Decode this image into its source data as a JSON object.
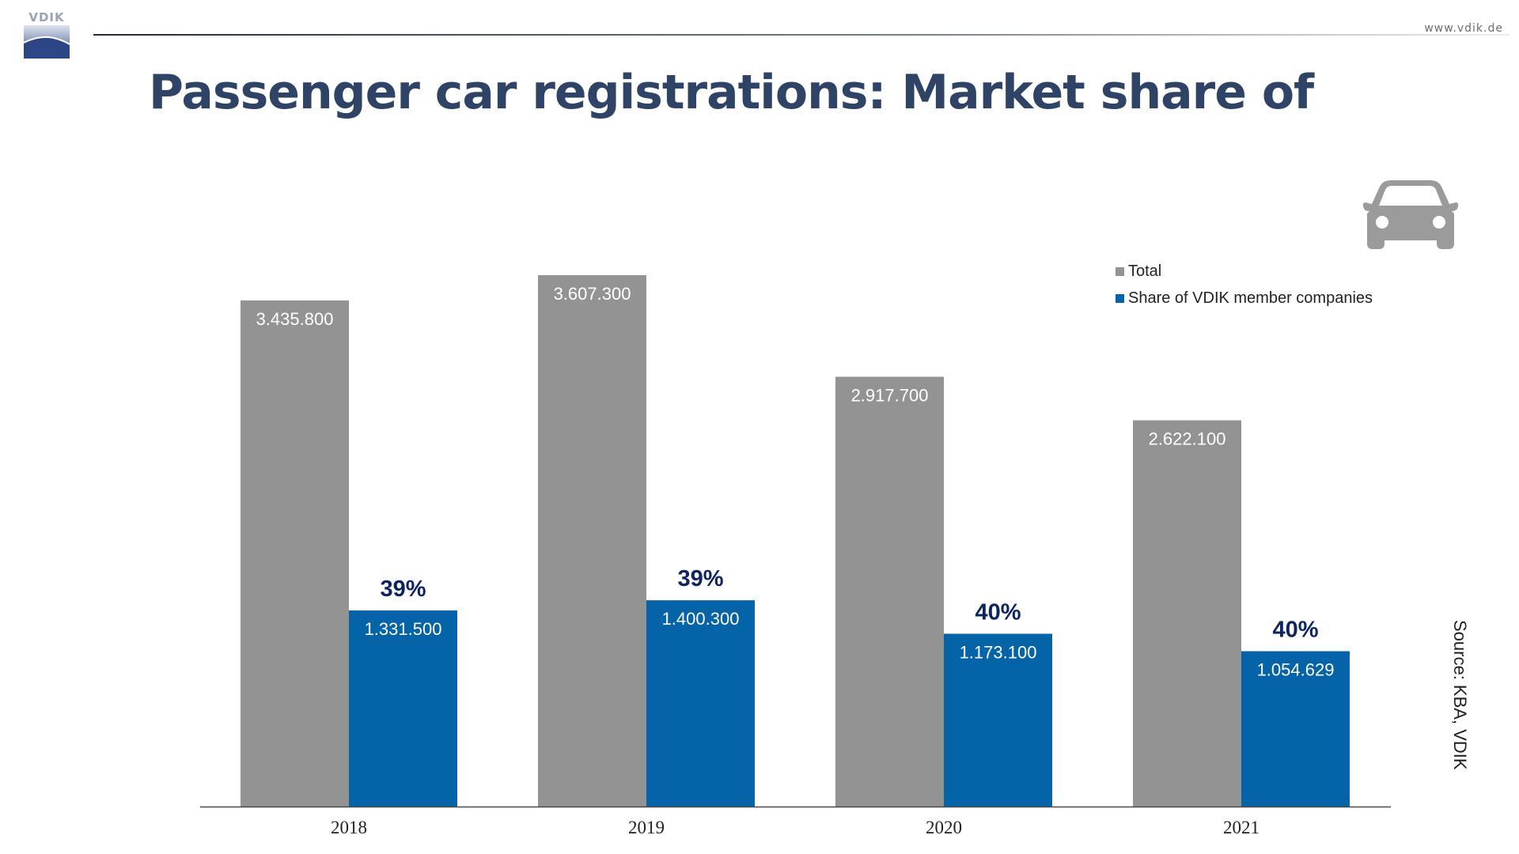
{
  "header": {
    "logo_text": "VDIK",
    "url": "www.vdik.de"
  },
  "title": "Passenger car registrations: Market share of",
  "source": "Source: KBA, VDIK",
  "icons": {
    "car": "car-icon",
    "logo": "vdik-logo"
  },
  "colors": {
    "total": "#939393",
    "share": "#0563a8",
    "percent_label": "#0c2460",
    "title": "#2e4366"
  },
  "chart_data": {
    "type": "bar",
    "categories": [
      "2018",
      "2019",
      "2020",
      "2021"
    ],
    "series": [
      {
        "name": "Total",
        "values": [
          3435800,
          3607300,
          2917700,
          2622100
        ],
        "labels": [
          "3.435.800",
          "3.607.300",
          "2.917.700",
          "2.622.100"
        ]
      },
      {
        "name": "Share of VDIK member companies",
        "values": [
          1331500,
          1400300,
          1173100,
          1054629
        ],
        "labels": [
          "1.331.500",
          "1.400.300",
          "1.173.100",
          "1.054.629"
        ],
        "percent_labels": [
          "39%",
          "39%",
          "40%",
          "40%"
        ]
      }
    ],
    "ylim": [
      0,
      3750000
    ],
    "grid": false,
    "legend": "top-right"
  }
}
